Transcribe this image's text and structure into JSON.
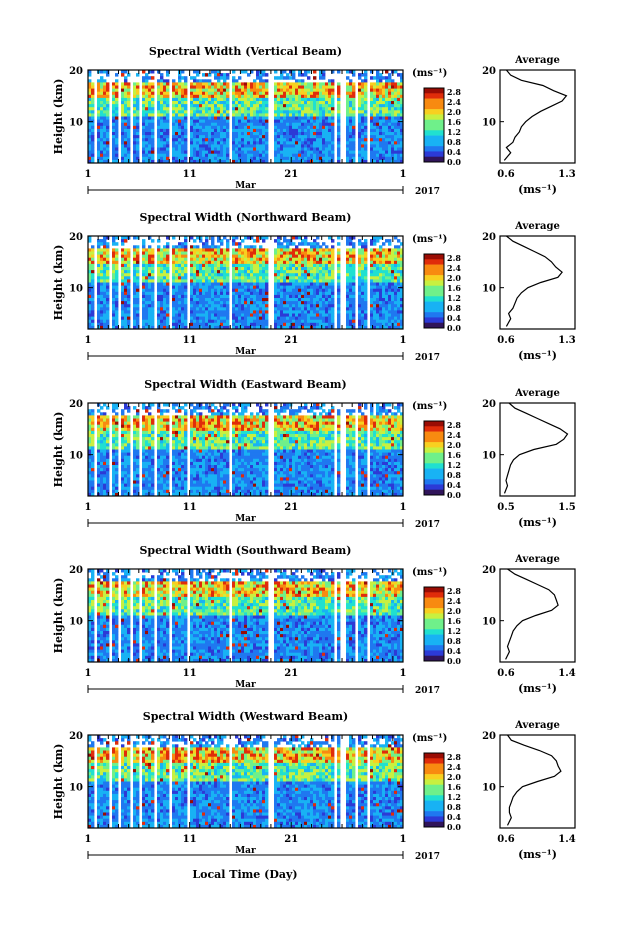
{
  "chart_data": [
    {
      "type": "heatmap",
      "title": "Spectral Width (Vertical Beam)",
      "ylabel": "Height (km)",
      "ylim": [
        2,
        20
      ],
      "yticks": [
        "20",
        "10"
      ],
      "xticks": [
        "1",
        "11",
        "21",
        "1"
      ],
      "month_label": "Mar",
      "year_label": "2017",
      "colorbar": {
        "unit": "(ms⁻¹)",
        "ticks": [
          "2.8",
          "2.4",
          "2.0",
          "1.6",
          "1.2",
          "0.8",
          "0.4",
          "0.0"
        ],
        "range": [
          0.0,
          2.8
        ]
      },
      "profile": {
        "title": "Average",
        "xticks": [
          "0.6",
          "1.3"
        ],
        "xlim": [
          0.6,
          1.3
        ],
        "xlabel": "(ms⁻¹)",
        "yticks": [
          "20",
          "10"
        ],
        "ylim": [
          2,
          20
        ],
        "heights": [
          2.5,
          4,
          5,
          6,
          7,
          8,
          9,
          10,
          11,
          12,
          13,
          14,
          15,
          16,
          17,
          18,
          19,
          20
        ],
        "values": [
          0.64,
          0.7,
          0.66,
          0.72,
          0.74,
          0.78,
          0.8,
          0.84,
          0.9,
          0.98,
          1.08,
          1.18,
          1.22,
          1.1,
          1.0,
          0.8,
          0.7,
          0.66
        ]
      }
    },
    {
      "type": "heatmap",
      "title": "Spectral Width (Northward Beam)",
      "ylabel": "Height (km)",
      "ylim": [
        2,
        20
      ],
      "yticks": [
        "20",
        "10"
      ],
      "xticks": [
        "1",
        "11",
        "21",
        "1"
      ],
      "month_label": "Mar",
      "year_label": "2017",
      "colorbar": {
        "unit": "(ms⁻¹)",
        "ticks": [
          "2.8",
          "2.4",
          "2.0",
          "1.6",
          "1.2",
          "0.8",
          "0.4",
          "0.0"
        ],
        "range": [
          0.0,
          2.8
        ]
      },
      "profile": {
        "title": "Average",
        "xticks": [
          "0.6",
          "1.3"
        ],
        "xlim": [
          0.6,
          1.3
        ],
        "xlabel": "(ms⁻¹)",
        "yticks": [
          "20",
          "10"
        ],
        "ylim": [
          2,
          20
        ],
        "heights": [
          2.5,
          4,
          5,
          6,
          7,
          8,
          9,
          10,
          11,
          12,
          13,
          14,
          15,
          16,
          17,
          18,
          19,
          20
        ],
        "values": [
          0.66,
          0.7,
          0.68,
          0.72,
          0.74,
          0.76,
          0.8,
          0.86,
          0.98,
          1.14,
          1.18,
          1.12,
          1.08,
          1.02,
          0.92,
          0.82,
          0.72,
          0.66
        ]
      }
    },
    {
      "type": "heatmap",
      "title": "Spectral Width (Eastward Beam)",
      "ylabel": "Height (km)",
      "ylim": [
        2,
        20
      ],
      "yticks": [
        "20",
        "10"
      ],
      "xticks": [
        "1",
        "11",
        "21",
        "1"
      ],
      "month_label": "Mar",
      "year_label": "2017",
      "colorbar": {
        "unit": "(ms⁻¹)",
        "ticks": [
          "2.8",
          "2.4",
          "2.0",
          "1.6",
          "1.2",
          "0.8",
          "0.4",
          "0.0"
        ],
        "range": [
          0.0,
          2.8
        ]
      },
      "profile": {
        "title": "Average",
        "xticks": [
          "0.5",
          "1.5"
        ],
        "xlim": [
          0.5,
          1.5
        ],
        "xlabel": "(ms⁻¹)",
        "yticks": [
          "20",
          "10"
        ],
        "ylim": [
          2,
          20
        ],
        "heights": [
          2.5,
          4,
          5,
          6,
          7,
          8,
          9,
          10,
          11,
          12,
          13,
          14,
          15,
          16,
          17,
          18,
          19,
          20
        ],
        "values": [
          0.56,
          0.6,
          0.58,
          0.6,
          0.62,
          0.64,
          0.68,
          0.76,
          0.95,
          1.25,
          1.35,
          1.4,
          1.3,
          1.15,
          1.0,
          0.85,
          0.7,
          0.62
        ]
      }
    },
    {
      "type": "heatmap",
      "title": "Spectral Width (Southward Beam)",
      "ylabel": "Height (km)",
      "ylim": [
        2,
        20
      ],
      "yticks": [
        "20",
        "10"
      ],
      "xticks": [
        "1",
        "11",
        "21",
        "1"
      ],
      "month_label": "Mar",
      "year_label": "2017",
      "colorbar": {
        "unit": "(ms⁻¹)",
        "ticks": [
          "2.8",
          "2.4",
          "2.0",
          "1.6",
          "1.2",
          "0.8",
          "0.4",
          "0.0"
        ],
        "range": [
          0.0,
          2.8
        ]
      },
      "profile": {
        "title": "Average",
        "xticks": [
          "0.6",
          "1.4"
        ],
        "xlim": [
          0.6,
          1.4
        ],
        "xlabel": "(ms⁻¹)",
        "yticks": [
          "20",
          "10"
        ],
        "ylim": [
          2,
          20
        ],
        "heights": [
          2.5,
          4,
          5,
          6,
          7,
          8,
          9,
          10,
          11,
          12,
          13,
          14,
          15,
          16,
          17,
          18,
          19,
          20
        ],
        "values": [
          0.66,
          0.7,
          0.68,
          0.7,
          0.72,
          0.74,
          0.78,
          0.84,
          0.98,
          1.15,
          1.22,
          1.2,
          1.18,
          1.12,
          1.0,
          0.88,
          0.76,
          0.68
        ]
      }
    },
    {
      "type": "heatmap",
      "title": "Spectral Width (Westward Beam)",
      "ylabel": "Height (km)",
      "ylim": [
        2,
        20
      ],
      "yticks": [
        "20",
        "10"
      ],
      "xticks": [
        "1",
        "11",
        "21",
        "1"
      ],
      "month_label": "Mar",
      "year_label": "2017",
      "colorbar": {
        "unit": "(ms⁻¹)",
        "ticks": [
          "2.8",
          "2.4",
          "2.0",
          "1.6",
          "1.2",
          "0.8",
          "0.4",
          "0.0"
        ],
        "range": [
          0.0,
          2.8
        ]
      },
      "profile": {
        "title": "Average",
        "xticks": [
          "0.6",
          "1.4"
        ],
        "xlim": [
          0.6,
          1.4
        ],
        "xlabel": "(ms⁻¹)",
        "yticks": [
          "20",
          "10"
        ],
        "ylim": [
          2,
          20
        ],
        "heights": [
          2.5,
          4,
          5,
          6,
          7,
          8,
          9,
          10,
          11,
          12,
          13,
          14,
          15,
          16,
          17,
          18,
          19,
          20
        ],
        "values": [
          0.68,
          0.72,
          0.7,
          0.7,
          0.72,
          0.74,
          0.78,
          0.84,
          1.0,
          1.18,
          1.25,
          1.22,
          1.2,
          1.15,
          1.02,
          0.86,
          0.72,
          0.68
        ]
      }
    }
  ],
  "xlabel": "Local Time (Day)",
  "colors": {
    "colormap": [
      "#30145a",
      "#2c3ad6",
      "#1f78f0",
      "#18b2f4",
      "#20e0d0",
      "#6ff08a",
      "#c8f040",
      "#f8d020",
      "#f88a10",
      "#e02c0a",
      "#9a0c04"
    ],
    "axes": "#000000",
    "gap": "#ffffff"
  }
}
